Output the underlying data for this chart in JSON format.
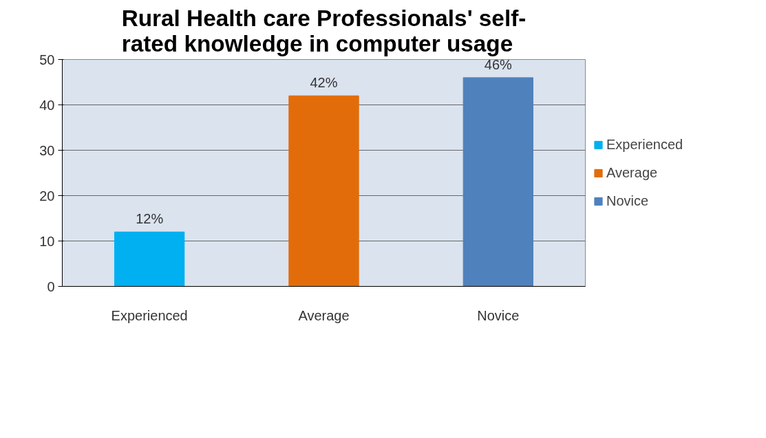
{
  "chart_data": {
    "type": "bar",
    "title": "Rural Health care Professionals' self-rated knowledge in computer usage",
    "categories": [
      "Experienced",
      "Average",
      "Novice"
    ],
    "series": [
      {
        "name": "Experienced",
        "color": "#00b0f0",
        "values": [
          12,
          null,
          null
        ],
        "value_labels": [
          "12%",
          null,
          null
        ]
      },
      {
        "name": "Average",
        "color": "#e36c0a",
        "values": [
          null,
          42,
          null
        ],
        "value_labels": [
          null,
          "42%",
          null
        ]
      },
      {
        "name": "Novice",
        "color": "#4f81bd",
        "values": [
          null,
          null,
          46
        ],
        "value_labels": [
          null,
          null,
          "46%"
        ]
      }
    ],
    "ylim": [
      0,
      50
    ],
    "yticks": [
      0,
      10,
      20,
      30,
      40,
      50
    ],
    "grid": "y",
    "legend": "right"
  }
}
